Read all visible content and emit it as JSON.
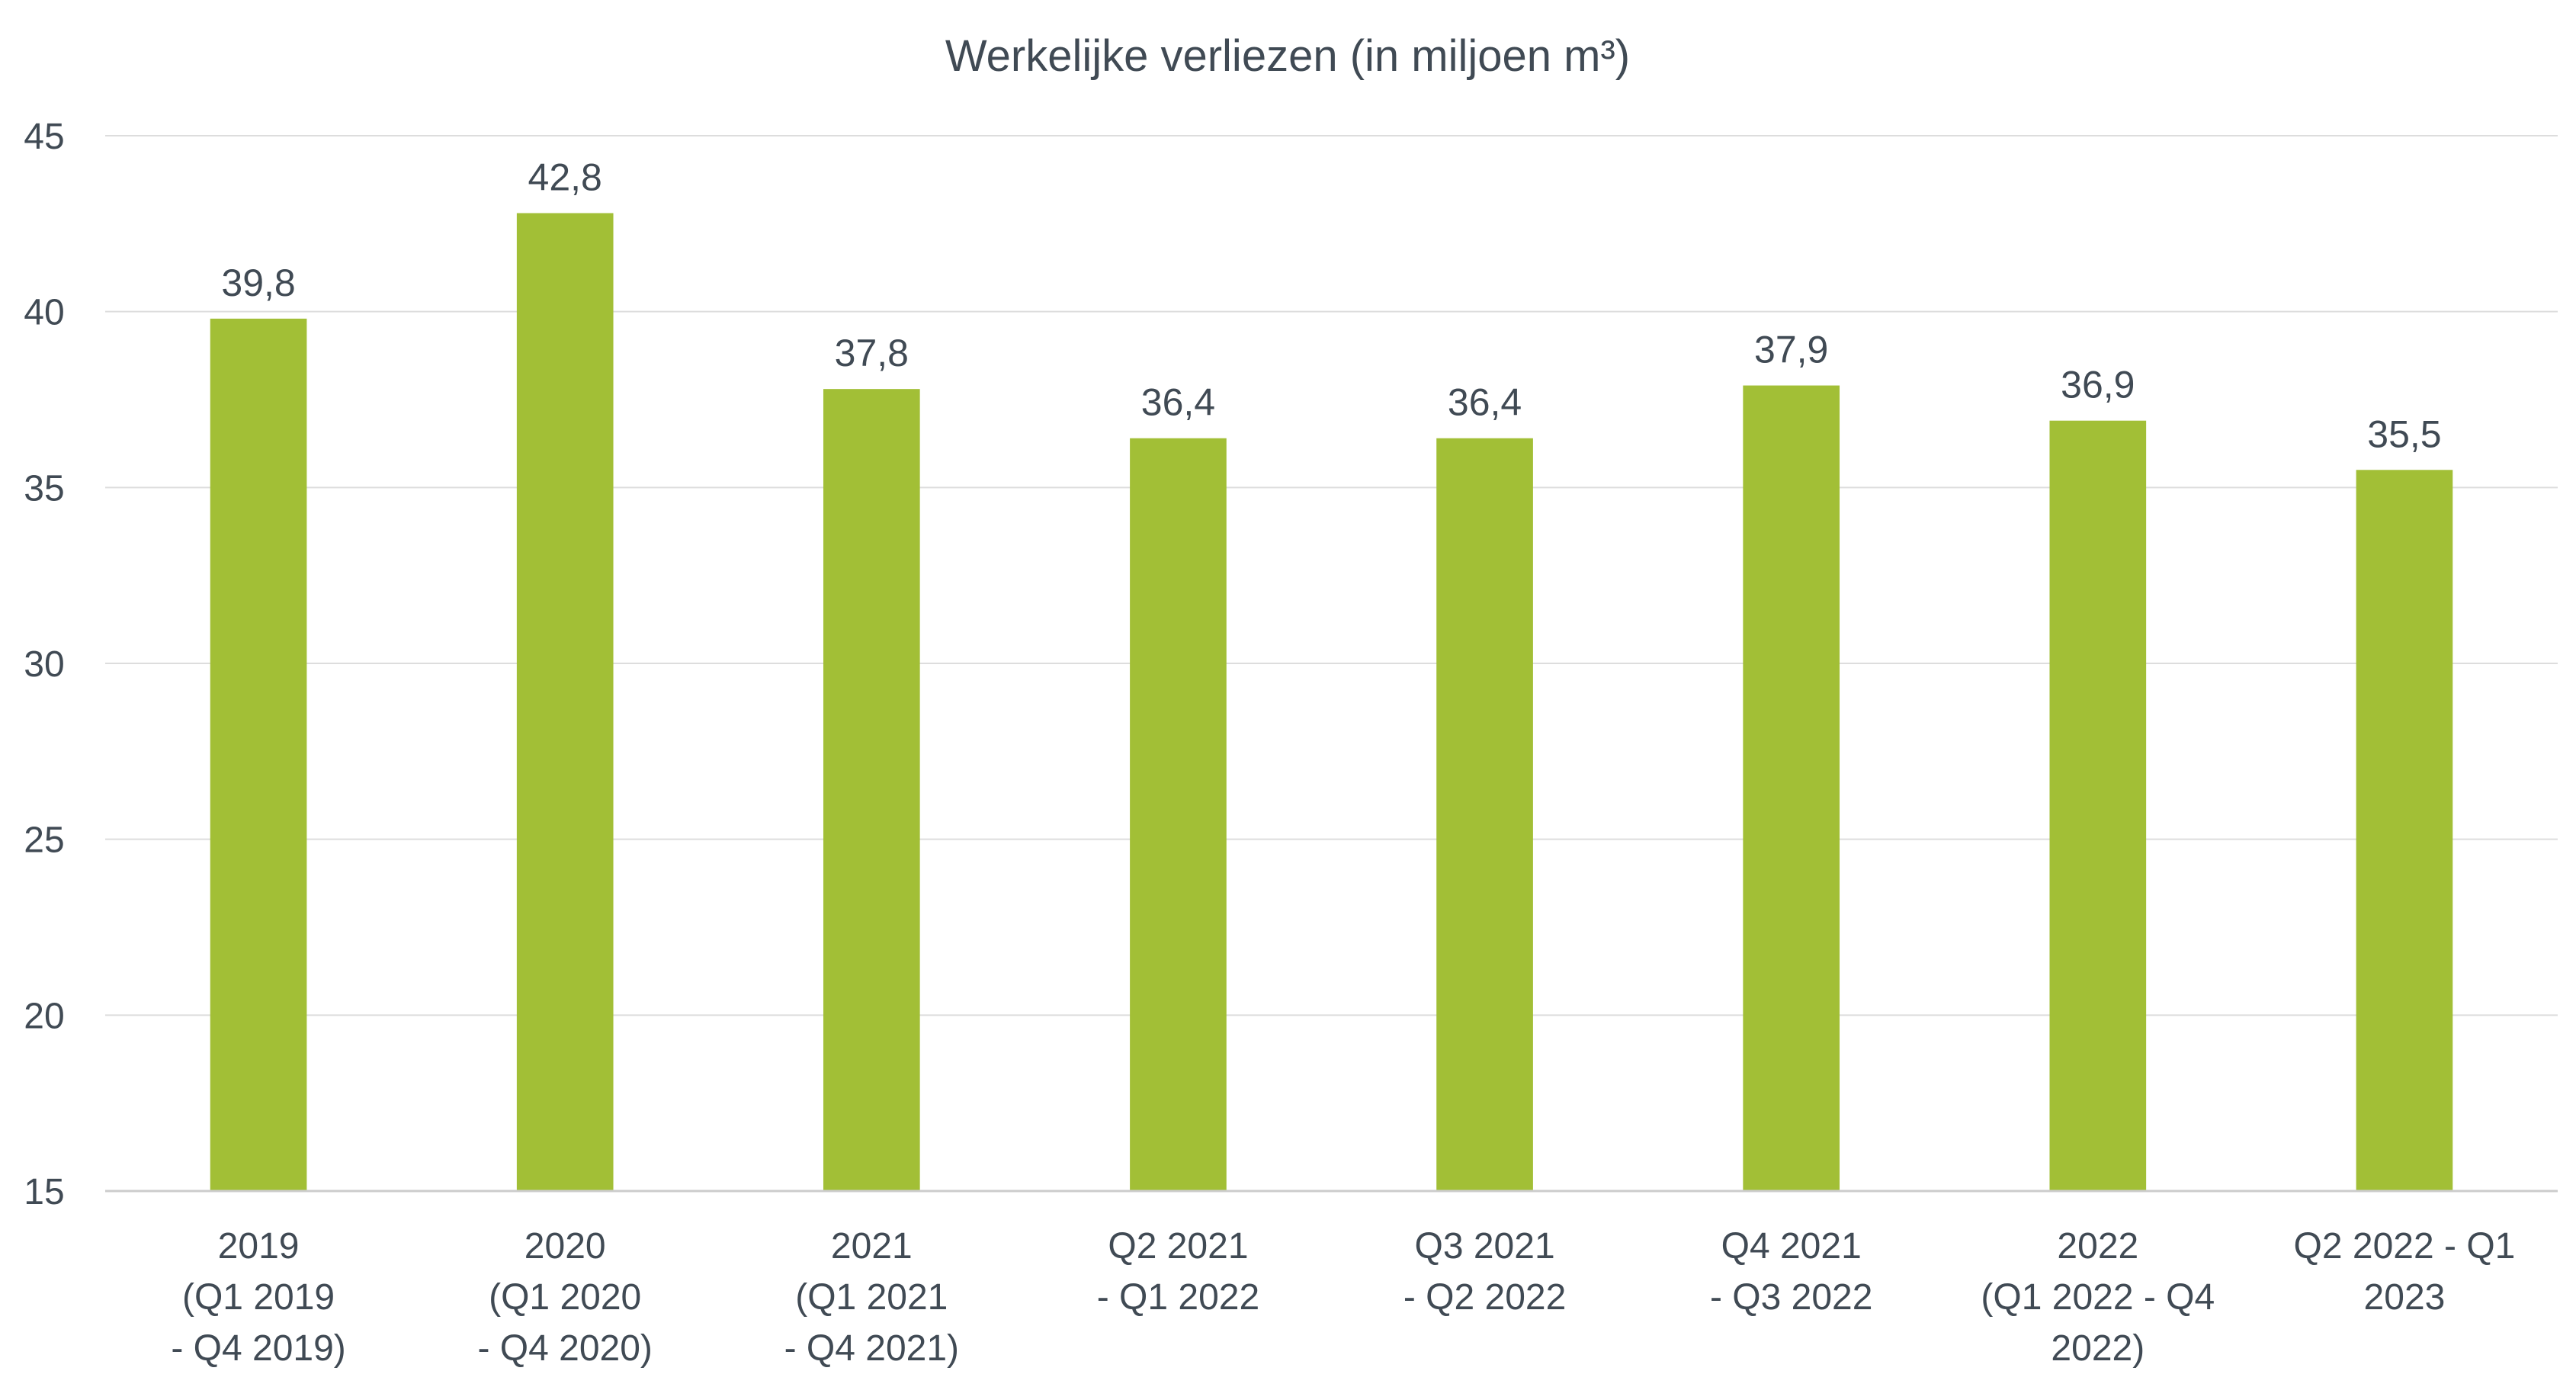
{
  "chart_data": {
    "type": "bar",
    "title": "Werkelijke verliezen (in miljoen m³)",
    "xlabel": "",
    "ylabel": "",
    "ylim": [
      15,
      45
    ],
    "yticks": [
      15,
      20,
      25,
      30,
      35,
      40,
      45
    ],
    "grid": true,
    "legend": "none",
    "bar_color": "#a2bf36",
    "categories": [
      [
        "2019",
        "(Q1 2019",
        "- Q4 2019)"
      ],
      [
        "2020",
        "(Q1 2020",
        "- Q4 2020)"
      ],
      [
        "2021",
        "(Q1 2021",
        "- Q4 2021)"
      ],
      [
        "Q2 2021",
        "- Q1 2022"
      ],
      [
        "Q3 2021",
        "- Q2 2022"
      ],
      [
        "Q4 2021",
        "- Q3 2022"
      ],
      [
        "2022",
        "(Q1 2022 - Q4",
        "2022)"
      ],
      [
        "Q2 2022 - Q1",
        "2023"
      ]
    ],
    "values": [
      39.8,
      42.8,
      37.8,
      36.4,
      36.4,
      37.9,
      36.9,
      35.5
    ],
    "data_labels": [
      "39,8",
      "42,8",
      "37,8",
      "36,4",
      "36,4",
      "37,9",
      "36,9",
      "35,5"
    ]
  }
}
